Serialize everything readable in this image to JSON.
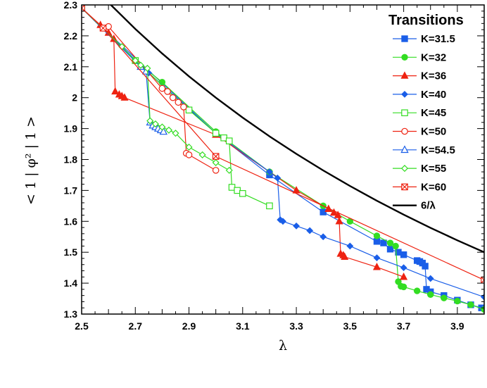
{
  "chart_data": {
    "type": "line",
    "title": "",
    "xlabel": "λ",
    "ylabel": "< 1 | φ² | 1 >",
    "xlim": [
      2.5,
      4.0
    ],
    "ylim": [
      1.3,
      2.3
    ],
    "xticks": [
      "2.5",
      "2.7",
      "2.9",
      "3.1",
      "3.3",
      "3.5",
      "3.7",
      "3.9"
    ],
    "xtick_values": [
      2.5,
      2.7,
      2.9,
      3.1,
      3.3,
      3.5,
      3.7,
      3.9
    ],
    "yticks": [
      "1.3",
      "1.4",
      "1.5",
      "1.6",
      "1.7",
      "1.8",
      "1.9",
      "2",
      "2.1",
      "2.2",
      "2.3"
    ],
    "ytick_values": [
      1.3,
      1.4,
      1.5,
      1.6,
      1.7,
      1.8,
      1.9,
      2.0,
      2.1,
      2.2,
      2.3
    ],
    "grid": false,
    "legend": {
      "title": "Transitions",
      "position": "top-right"
    },
    "series": [
      {
        "name": "K=31.5",
        "color": "#1a5ee8",
        "marker": "square-filled",
        "points": [
          [
            2.5,
            2.29
          ],
          [
            3.0,
            1.885
          ],
          [
            3.2,
            1.75
          ],
          [
            3.4,
            1.63
          ],
          [
            3.6,
            1.535
          ],
          [
            3.625,
            1.53
          ],
          [
            3.65,
            1.51
          ],
          [
            3.68,
            1.5
          ],
          [
            3.7,
            1.492
          ],
          [
            3.75,
            1.473
          ],
          [
            3.76,
            1.47
          ],
          [
            3.77,
            1.465
          ],
          [
            3.78,
            1.455
          ],
          [
            3.785,
            1.38
          ],
          [
            3.8,
            1.372
          ],
          [
            3.85,
            1.36
          ],
          [
            3.9,
            1.345
          ],
          [
            3.95,
            1.33
          ],
          [
            3.99,
            1.32
          ]
        ]
      },
      {
        "name": "K=32",
        "color": "#33dd22",
        "marker": "circle-filled",
        "points": [
          [
            2.5,
            2.29
          ],
          [
            2.7,
            2.12
          ],
          [
            2.8,
            2.05
          ],
          [
            3.0,
            1.89
          ],
          [
            3.2,
            1.76
          ],
          [
            3.4,
            1.65
          ],
          [
            3.5,
            1.6
          ],
          [
            3.6,
            1.553
          ],
          [
            3.65,
            1.53
          ],
          [
            3.67,
            1.52
          ],
          [
            3.68,
            1.405
          ],
          [
            3.69,
            1.39
          ],
          [
            3.7,
            1.388
          ],
          [
            3.75,
            1.375
          ],
          [
            3.8,
            1.363
          ],
          [
            3.85,
            1.352
          ],
          [
            3.9,
            1.342
          ],
          [
            3.95,
            1.33
          ],
          [
            4.0,
            1.315
          ]
        ]
      },
      {
        "name": "K=36",
        "color": "#ee2211",
        "marker": "triangle-filled",
        "points": [
          [
            2.5,
            2.29
          ],
          [
            2.57,
            2.235
          ],
          [
            2.6,
            2.21
          ],
          [
            2.62,
            2.19
          ],
          [
            2.625,
            2.02
          ],
          [
            2.64,
            2.01
          ],
          [
            2.65,
            2.005
          ],
          [
            2.66,
            2.0
          ],
          [
            3.0,
            1.88
          ],
          [
            3.3,
            1.7
          ],
          [
            3.42,
            1.64
          ],
          [
            3.44,
            1.628
          ],
          [
            3.455,
            1.62
          ],
          [
            3.46,
            1.6
          ],
          [
            3.465,
            1.495
          ],
          [
            3.475,
            1.49
          ],
          [
            3.48,
            1.485
          ],
          [
            3.6,
            1.452
          ],
          [
            3.7,
            1.42
          ]
        ]
      },
      {
        "name": "K=40",
        "color": "#1a5ee8",
        "marker": "diamond-filled",
        "points": [
          [
            2.5,
            2.29
          ],
          [
            2.75,
            2.08
          ],
          [
            3.0,
            1.885
          ],
          [
            3.2,
            1.76
          ],
          [
            3.23,
            1.74
          ],
          [
            3.24,
            1.605
          ],
          [
            3.25,
            1.6
          ],
          [
            3.3,
            1.585
          ],
          [
            3.35,
            1.57
          ],
          [
            3.4,
            1.55
          ],
          [
            3.5,
            1.52
          ],
          [
            3.6,
            1.482
          ],
          [
            3.7,
            1.45
          ],
          [
            3.8,
            1.415
          ],
          [
            4.0,
            1.355
          ]
        ]
      },
      {
        "name": "K=45",
        "color": "#33dd22",
        "marker": "square-open",
        "points": [
          [
            2.5,
            2.29
          ],
          [
            2.7,
            2.12
          ],
          [
            2.9,
            1.96
          ],
          [
            3.0,
            1.885
          ],
          [
            3.03,
            1.87
          ],
          [
            3.05,
            1.86
          ],
          [
            3.06,
            1.71
          ],
          [
            3.08,
            1.7
          ],
          [
            3.1,
            1.69
          ],
          [
            3.2,
            1.65
          ]
        ]
      },
      {
        "name": "K=50",
        "color": "#ee2211",
        "marker": "circle-open",
        "points": [
          [
            2.6,
            2.23
          ],
          [
            2.8,
            2.03
          ],
          [
            2.82,
            2.02
          ],
          [
            2.84,
            2.0
          ],
          [
            2.86,
            1.985
          ],
          [
            2.88,
            1.97
          ],
          [
            2.89,
            1.82
          ],
          [
            2.9,
            1.815
          ],
          [
            3.0,
            1.765
          ]
        ]
      },
      {
        "name": "K=54.5",
        "color": "#1a5ee8",
        "marker": "triangle-open",
        "points": [
          [
            2.5,
            2.29
          ],
          [
            2.72,
            2.1
          ],
          [
            2.74,
            2.085
          ],
          [
            2.755,
            1.92
          ],
          [
            2.765,
            1.91
          ],
          [
            2.775,
            1.905
          ],
          [
            2.785,
            1.9
          ],
          [
            2.795,
            1.895
          ],
          [
            2.805,
            1.89
          ]
        ]
      },
      {
        "name": "K=55",
        "color": "#33dd22",
        "marker": "diamond-open",
        "points": [
          [
            2.5,
            2.29
          ],
          [
            2.65,
            2.165
          ],
          [
            2.7,
            2.12
          ],
          [
            2.72,
            2.105
          ],
          [
            2.745,
            2.095
          ],
          [
            2.755,
            1.925
          ],
          [
            2.775,
            1.915
          ],
          [
            2.8,
            1.905
          ],
          [
            2.825,
            1.895
          ],
          [
            2.85,
            1.885
          ],
          [
            2.9,
            1.84
          ],
          [
            2.95,
            1.815
          ],
          [
            3.0,
            1.79
          ],
          [
            3.05,
            1.765
          ]
        ]
      },
      {
        "name": "K=60",
        "color": "#ee2211",
        "marker": "square-x",
        "points": [
          [
            2.5,
            2.29
          ],
          [
            2.58,
            2.225
          ],
          [
            3.0,
            1.81
          ],
          [
            4.0,
            1.41
          ]
        ]
      },
      {
        "name": "6/λ",
        "color": "#000000",
        "marker": "none",
        "points": [
          [
            2.6,
            2.3077
          ],
          [
            2.7,
            2.2222
          ],
          [
            2.8,
            2.1429
          ],
          [
            2.9,
            2.069
          ],
          [
            3.0,
            2.0
          ],
          [
            3.1,
            1.9355
          ],
          [
            3.2,
            1.875
          ],
          [
            3.3,
            1.8182
          ],
          [
            3.4,
            1.7647
          ],
          [
            3.5,
            1.7143
          ],
          [
            3.6,
            1.6667
          ],
          [
            3.7,
            1.6216
          ],
          [
            3.8,
            1.5789
          ],
          [
            3.9,
            1.5385
          ],
          [
            4.0,
            1.5
          ]
        ]
      }
    ]
  }
}
